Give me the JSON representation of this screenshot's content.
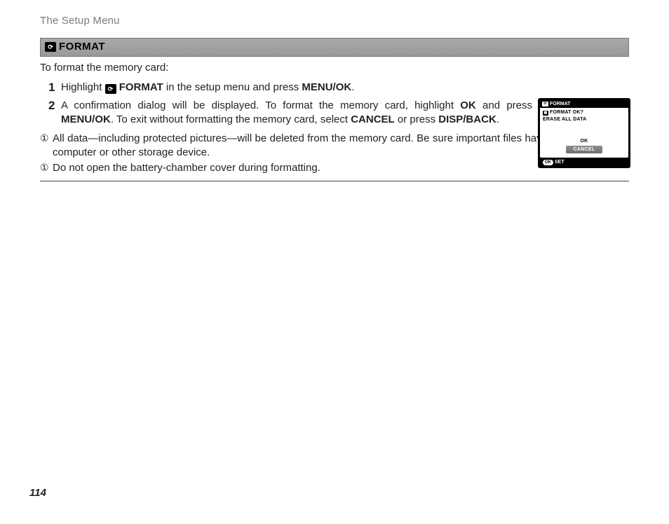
{
  "colors": {
    "text": "#231f20",
    "muted": "#7a7a7a",
    "bar_top": "#a8a8a8",
    "bar_bottom": "#999999",
    "bar_border": "#777777",
    "black": "#000000",
    "white": "#ffffff",
    "cancel_top": "#8d8d8d",
    "cancel_bottom": "#6f6f6f",
    "rule": "#444444"
  },
  "running_head": "The Setup Menu",
  "section": {
    "icon_glyph": "⟳",
    "title": "FORMAT"
  },
  "intro": "To format the memory card:",
  "steps": [
    {
      "num": "1",
      "parts": [
        {
          "t": "Highlight "
        },
        {
          "icon": "⟳"
        },
        {
          "t": " "
        },
        {
          "b": "FORMAT"
        },
        {
          "t": " in the setup menu and press "
        },
        {
          "b": "MENU/OK"
        },
        {
          "t": "."
        }
      ]
    },
    {
      "num": "2",
      "parts": [
        {
          "t": "A confirmation dialog will be displayed. To format the memory card, highlight "
        },
        {
          "b": "OK"
        },
        {
          "t": " and press "
        },
        {
          "b": "MENU/OK"
        },
        {
          "t": ". To exit without formatting the memory card, select "
        },
        {
          "b": "CANCEL"
        },
        {
          "t": " or press "
        },
        {
          "b": "DISP/BACK"
        },
        {
          "t": "."
        }
      ]
    }
  ],
  "notes": [
    "All data—including protected pictures—will be deleted from the memory card.  Be sure important files have been copied to a computer or other storage device.",
    "Do not open the battery-chamber cover during formatting."
  ],
  "note_icon": "①",
  "dialog": {
    "title_icon": "⟳",
    "title": "FORMAT",
    "line1_icon": "▦",
    "line1": "FORMAT  OK?",
    "line2": "ERASE ALL DATA",
    "ok": "OK",
    "cancel": "CANCEL",
    "footer_pill": "OK",
    "footer": "SET"
  },
  "page_number": "114"
}
